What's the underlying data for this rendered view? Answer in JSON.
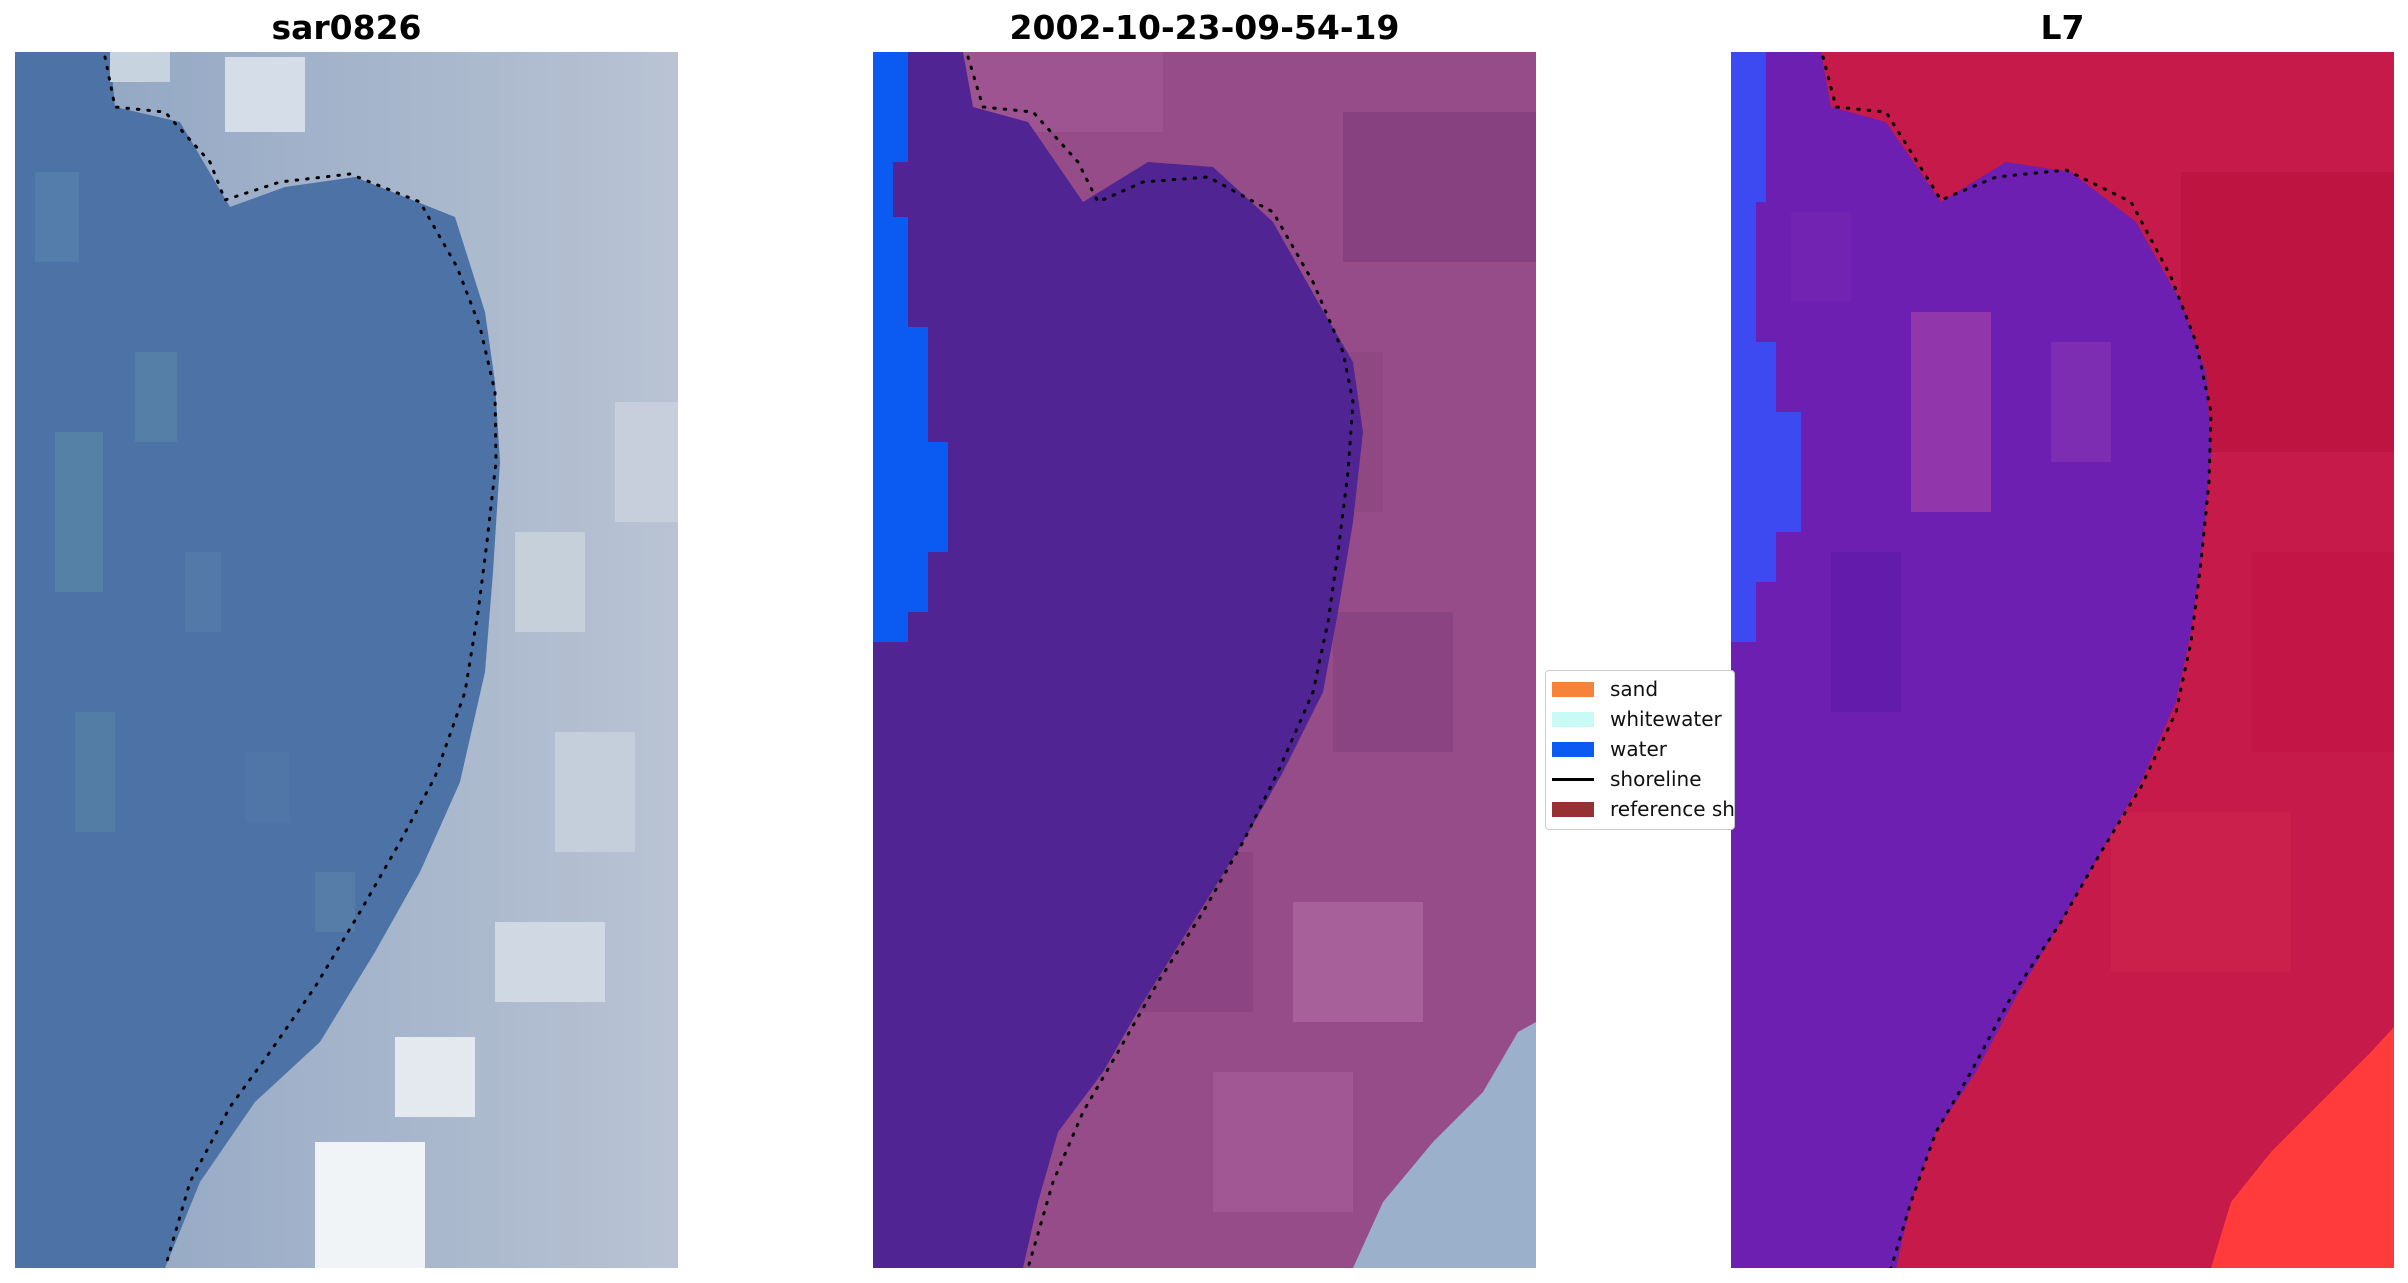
{
  "panels": [
    {
      "title": "sar0826"
    },
    {
      "title": "2002-10-23-09-54-19"
    },
    {
      "title": "L7"
    }
  ],
  "legend": {
    "items": [
      {
        "label": "sand",
        "kind": "patch",
        "color": "#f5843a"
      },
      {
        "label": "whitewater",
        "kind": "patch",
        "color": "#c8fbf5"
      },
      {
        "label": "water",
        "kind": "patch",
        "color": "#0b5bf2"
      },
      {
        "label": "shoreline",
        "kind": "line",
        "color": "#000000"
      },
      {
        "label": "reference shoreline",
        "kind": "patch",
        "color": "#963033"
      }
    ]
  },
  "colors": {
    "rgb_water": "#4d72a6",
    "rgb_land": "#a3b2c6",
    "classified_water": "#502493",
    "classified_land": "#954c88",
    "classified_water_class": "#0b5bf2",
    "ndwi_low": "#6c1fb0",
    "ndwi_high": "#c61a4a",
    "shoreline_dots": "#000000"
  }
}
